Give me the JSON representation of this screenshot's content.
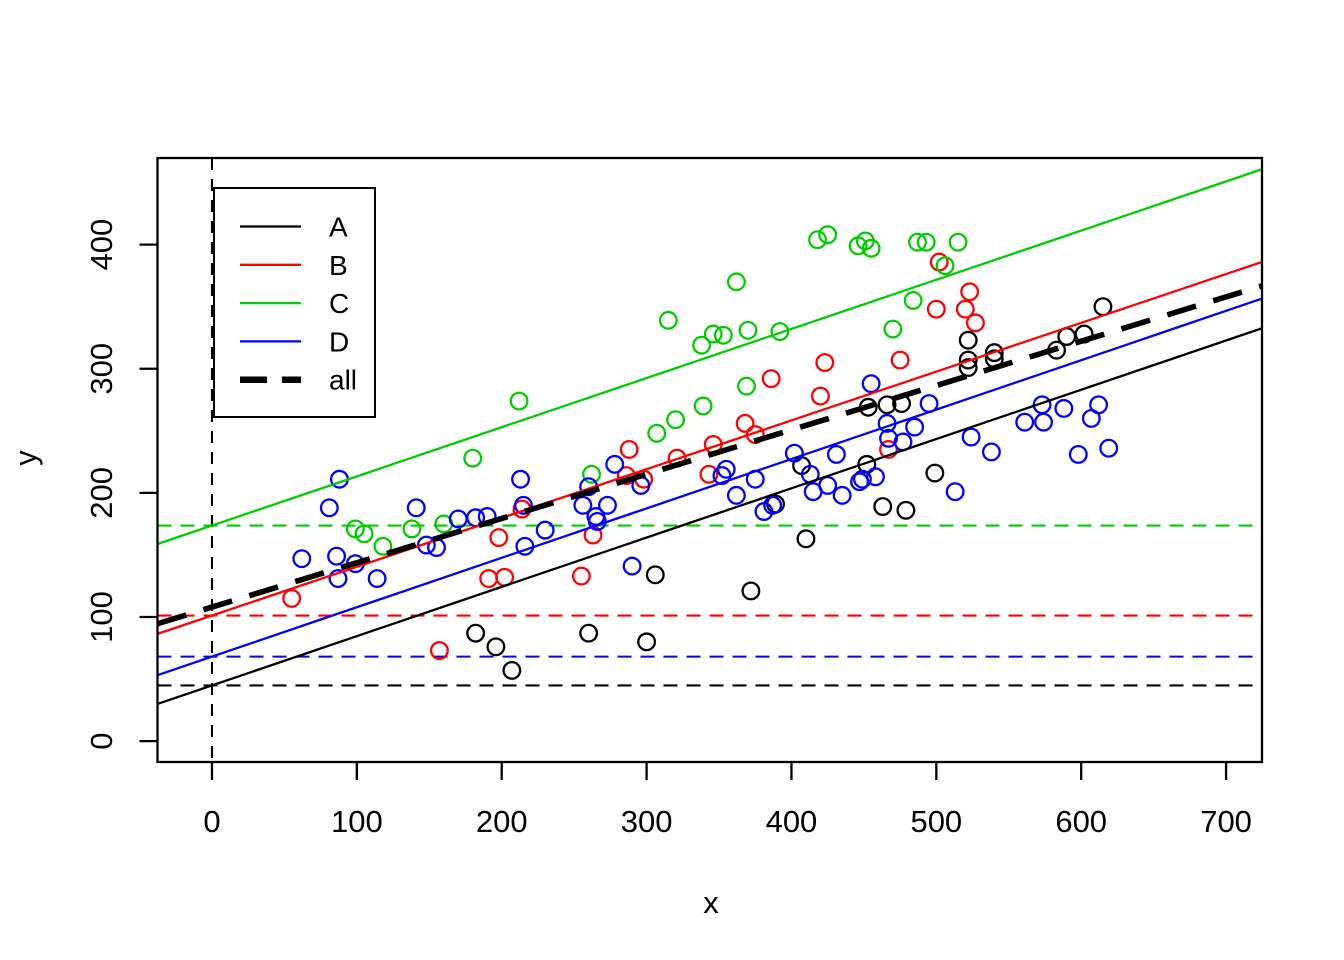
{
  "figure": {
    "background": "#FFFFFF"
  },
  "chart_data": {
    "type": "scatter",
    "title": "",
    "xlabel": "x",
    "ylabel": "y",
    "x_ticks": [
      0,
      100,
      200,
      300,
      400,
      500,
      600,
      700
    ],
    "y_ticks": [
      0,
      100,
      200,
      300,
      400
    ],
    "x_range": [
      -37.6,
      724.8
    ],
    "y_range": [
      -16.8,
      469.8
    ],
    "grid": false,
    "point_style": "open-circle",
    "vline": {
      "x": 0,
      "color": "#000000",
      "style": "dashed"
    },
    "legend": {
      "position": "top-left",
      "entries": [
        "A",
        "B",
        "C",
        "D",
        "all"
      ]
    },
    "overall_line": {
      "name": "all",
      "color": "#000000",
      "style": "dashed-bold",
      "intercept": 108,
      "slope": 0.357
    },
    "groups": [
      {
        "name": "A",
        "color": "#000000",
        "regression": {
          "intercept": 44.9,
          "slope": 0.397
        },
        "intercept_hline": 44.9,
        "points": [
          [
            615,
            350
          ],
          [
            602,
            328
          ],
          [
            590,
            326
          ],
          [
            583,
            315
          ],
          [
            522,
            323
          ],
          [
            540,
            313
          ],
          [
            540,
            308
          ],
          [
            522,
            307
          ],
          [
            522,
            301
          ],
          [
            476,
            272
          ],
          [
            453,
            269
          ],
          [
            466,
            271
          ],
          [
            499,
            216
          ],
          [
            479,
            186
          ],
          [
            407,
            222
          ],
          [
            452,
            223
          ],
          [
            463,
            189
          ],
          [
            389,
            191
          ],
          [
            410,
            163
          ],
          [
            372,
            121
          ],
          [
            306,
            134
          ],
          [
            260,
            87
          ],
          [
            300,
            80
          ],
          [
            182,
            87
          ],
          [
            196,
            76
          ],
          [
            207,
            57
          ]
        ]
      },
      {
        "name": "B",
        "color": "#FF0000",
        "regression": {
          "intercept": 101.2,
          "slope": 0.393
        },
        "intercept_hline": 101.2,
        "points": [
          [
            423,
            305
          ],
          [
            386,
            292
          ],
          [
            420,
            278
          ],
          [
            502,
            386
          ],
          [
            523,
            362
          ],
          [
            520,
            348
          ],
          [
            527,
            337
          ],
          [
            500,
            348
          ],
          [
            475,
            307
          ],
          [
            368,
            256
          ],
          [
            375,
            247
          ],
          [
            346,
            239
          ],
          [
            288,
            235
          ],
          [
            467,
            235
          ],
          [
            286,
            214
          ],
          [
            298,
            211
          ],
          [
            343,
            215
          ],
          [
            263,
            166
          ],
          [
            255,
            133
          ],
          [
            55,
            115
          ],
          [
            157,
            73
          ],
          [
            198,
            164
          ],
          [
            191,
            131
          ],
          [
            202,
            132
          ],
          [
            214,
            187
          ],
          [
            321,
            228
          ]
        ]
      },
      {
        "name": "C",
        "color": "#00CD00",
        "regression": {
          "intercept": 173.7,
          "slope": 0.396
        },
        "intercept_hline": 173.7,
        "points": [
          [
            418,
            404
          ],
          [
            425,
            408
          ],
          [
            446,
            399
          ],
          [
            451,
            403
          ],
          [
            455,
            397
          ],
          [
            487,
            402
          ],
          [
            493,
            402
          ],
          [
            515,
            402
          ],
          [
            506,
            383
          ],
          [
            484,
            355
          ],
          [
            470,
            332
          ],
          [
            362,
            370
          ],
          [
            315,
            339
          ],
          [
            338,
            319
          ],
          [
            346,
            328
          ],
          [
            353,
            327
          ],
          [
            370,
            331
          ],
          [
            392,
            330
          ],
          [
            369,
            286
          ],
          [
            339,
            270
          ],
          [
            307,
            248
          ],
          [
            320,
            259
          ],
          [
            212,
            274
          ],
          [
            180,
            228
          ],
          [
            262,
            215
          ],
          [
            99,
            171
          ],
          [
            105,
            167
          ],
          [
            118,
            157
          ],
          [
            138,
            171
          ],
          [
            160,
            175
          ]
        ]
      },
      {
        "name": "D",
        "color": "#0000FF",
        "regression": {
          "intercept": 68.1,
          "slope": 0.398
        },
        "intercept_hline": 68.1,
        "points": [
          [
            455,
            288
          ],
          [
            495,
            272
          ],
          [
            485,
            253
          ],
          [
            477,
            241
          ],
          [
            466,
            256
          ],
          [
            467,
            244
          ],
          [
            524,
            245
          ],
          [
            538,
            233
          ],
          [
            573,
            271
          ],
          [
            588,
            268
          ],
          [
            612,
            271
          ],
          [
            607,
            260
          ],
          [
            561,
            257
          ],
          [
            574,
            257
          ],
          [
            598,
            231
          ],
          [
            619,
            236
          ],
          [
            402,
            232
          ],
          [
            431,
            231
          ],
          [
            513,
            201
          ],
          [
            278,
            223
          ],
          [
            230,
            170
          ],
          [
            216,
            157
          ],
          [
            260,
            205
          ],
          [
            256,
            190
          ],
          [
            273,
            190
          ],
          [
            265,
            181
          ],
          [
            266,
            177
          ],
          [
            296,
            206
          ],
          [
            290,
            141
          ],
          [
            352,
            214
          ],
          [
            355,
            219
          ],
          [
            362,
            198
          ],
          [
            375,
            211
          ],
          [
            381,
            185
          ],
          [
            387,
            190
          ],
          [
            413,
            215
          ],
          [
            415,
            201
          ],
          [
            425,
            206
          ],
          [
            435,
            198
          ],
          [
            447,
            209
          ],
          [
            449,
            211
          ],
          [
            458,
            213
          ],
          [
            88,
            211
          ],
          [
            81,
            188
          ],
          [
            141,
            188
          ],
          [
            62,
            147
          ],
          [
            86,
            149
          ],
          [
            99,
            143
          ],
          [
            87,
            131
          ],
          [
            114,
            131
          ],
          [
            148,
            158
          ],
          [
            155,
            156
          ],
          [
            213,
            211
          ],
          [
            215,
            190
          ],
          [
            170,
            179
          ],
          [
            182,
            180
          ],
          [
            190,
            181
          ]
        ]
      }
    ]
  }
}
